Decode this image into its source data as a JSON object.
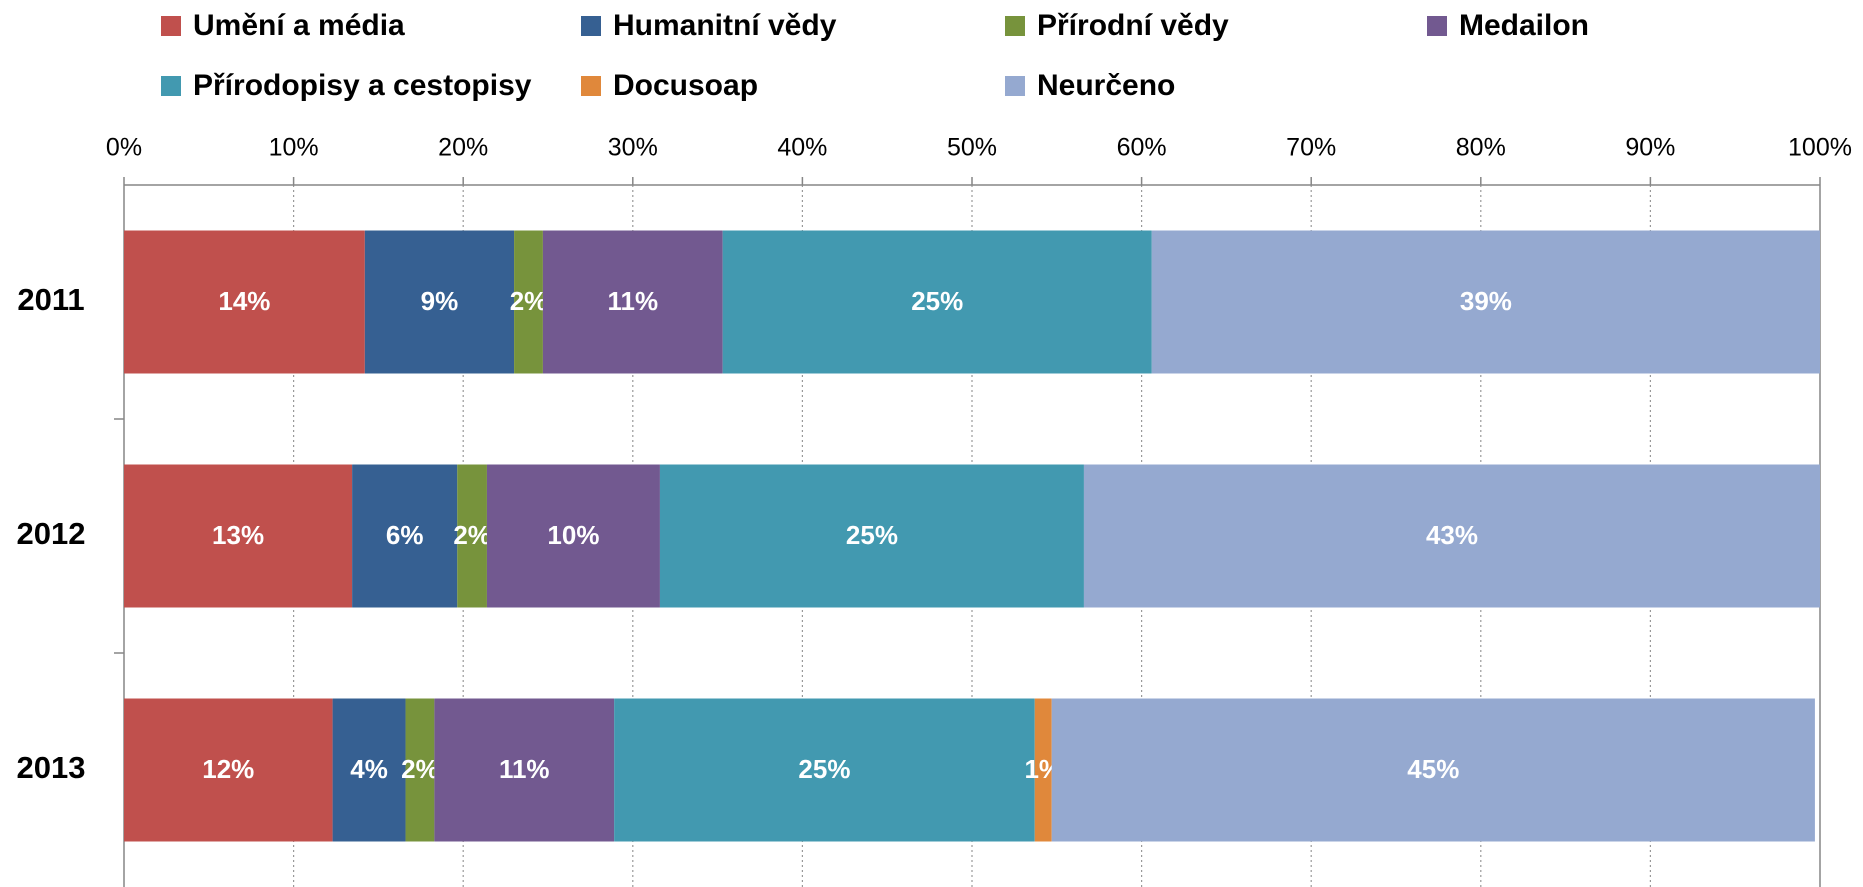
{
  "chart_data": {
    "type": "stacked_bar_horizontal",
    "categories": [
      "2011",
      "2012",
      "2013"
    ],
    "series": [
      {
        "name": "Umění a média",
        "color": "#c0504d",
        "values": [
          14.2,
          13.45,
          12.3
        ],
        "value_labels": [
          "14%",
          "13%",
          "12%"
        ]
      },
      {
        "name": "Humanitní vědy",
        "color": "#366092",
        "values": [
          8.8,
          6.2,
          4.3
        ],
        "value_labels": [
          "9%",
          "6%",
          "4%"
        ]
      },
      {
        "name": "Přírodní vědy",
        "color": "#77933c",
        "values": [
          1.7,
          1.75,
          1.7
        ],
        "value_labels": [
          "2%",
          "2%",
          "2%"
        ]
      },
      {
        "name": "Medailon",
        "color": "#725990",
        "values": [
          10.6,
          10.2,
          10.6
        ],
        "value_labels": [
          "11%",
          "10%",
          "11%"
        ]
      },
      {
        "name": "Přírodopisy a cestopisy",
        "color": "#4299b0",
        "values": [
          25.3,
          25.0,
          24.8
        ],
        "value_labels": [
          "25%",
          "25%",
          "25%"
        ]
      },
      {
        "name": "Docusoap",
        "color": "#e0883b",
        "values": [
          null,
          null,
          1.0
        ],
        "value_labels": [
          null,
          null,
          "1%"
        ]
      },
      {
        "name": "Neurčeno",
        "color": "#95a9d0",
        "values": [
          39.4,
          43.4,
          45.0
        ],
        "value_labels": [
          "39%",
          "43%",
          "45%"
        ]
      }
    ],
    "xlim": [
      0,
      100
    ],
    "xticks": [
      {
        "value": 0,
        "label": "0%"
      },
      {
        "value": 10,
        "label": "10%"
      },
      {
        "value": 20,
        "label": "20%"
      },
      {
        "value": 30,
        "label": "30%"
      },
      {
        "value": 40,
        "label": "40%"
      },
      {
        "value": 50,
        "label": "50%"
      },
      {
        "value": 60,
        "label": "60%"
      },
      {
        "value": 70,
        "label": "70%"
      },
      {
        "value": 80,
        "label": "80%"
      },
      {
        "value": 90,
        "label": "90%"
      },
      {
        "value": 100,
        "label": "100%"
      }
    ],
    "grid": true,
    "legend": "top"
  }
}
